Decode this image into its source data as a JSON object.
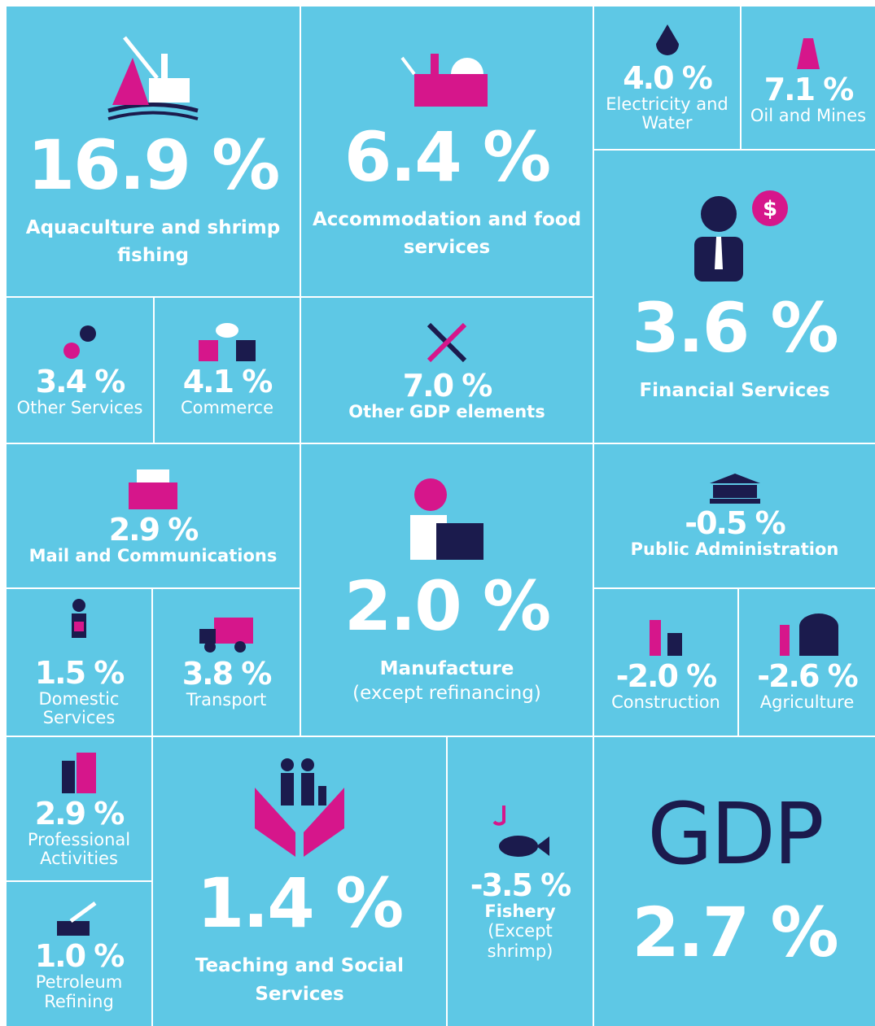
{
  "tiles": [
    {
      "value": "16.9 %",
      "label": "Aquaculture and shrimp fishing"
    },
    {
      "value": "6.4 %",
      "label": "Accommodation and food services"
    },
    {
      "value": "4.0 %",
      "label": "Electricity and Water"
    },
    {
      "value": "7.1 %",
      "label": "Oil and Mines"
    },
    {
      "value": "3.6 %",
      "label": "Financial Services"
    },
    {
      "value": "3.4 %",
      "label": "Other Services"
    },
    {
      "value": "4.1 %",
      "label": "Commerce"
    },
    {
      "value": "7.0 %",
      "label": "Other GDP elements"
    },
    {
      "value": "2.9 %",
      "label": "Mail and Communications"
    },
    {
      "value": "2.0 %",
      "label": "Manufacture",
      "note": "(except refinancing)"
    },
    {
      "value": "-0.5 %",
      "label": "Public Administration"
    },
    {
      "value": "1.5 %",
      "label": "Domestic Services"
    },
    {
      "value": "3.8 %",
      "label": "Transport"
    },
    {
      "value": "-2.0 %",
      "label": "Construction"
    },
    {
      "value": "-2.6 %",
      "label": "Agriculture"
    },
    {
      "value": "2.9 %",
      "label": "Professional Activities"
    },
    {
      "value": "1.0 %",
      "label": "Petroleum Refining"
    },
    {
      "value": "1.4 %",
      "label": "Teaching and Social Services"
    },
    {
      "value": "-3.5 %",
      "label": "Fishery",
      "note": "(Except shrimp)"
    }
  ],
  "gdp": {
    "title": "GDP",
    "value": "2.7 %"
  }
}
